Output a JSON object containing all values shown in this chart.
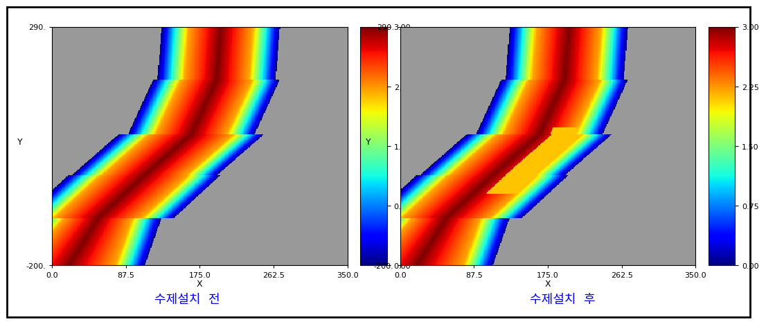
{
  "xlim": [
    0,
    350
  ],
  "ylim": [
    -200,
    290
  ],
  "xticks": [
    0.0,
    87.5,
    175.0,
    262.5,
    350.0
  ],
  "vmin": 0.0,
  "vmax": 3.0,
  "cbar_ticks": [
    0.0,
    0.75,
    1.5,
    2.25,
    3.0
  ],
  "bg_color": "#999999",
  "title_before": "수제설치  전",
  "title_after": "수제설치  후",
  "xlabel": "X",
  "ylabel": "Y",
  "fig_bg": "#ffffff",
  "border_color": "#000000",
  "yticks": [
    -200,
    290
  ]
}
